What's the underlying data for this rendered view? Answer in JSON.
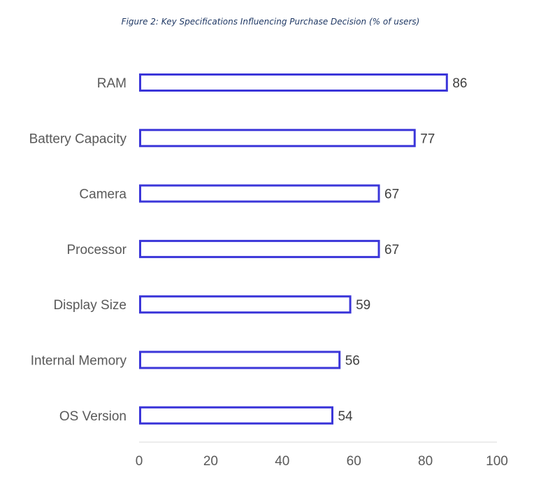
{
  "title": "Figure 2: Key Specifications Influencing Purchase Decision (% of users)",
  "chart_data": {
    "type": "bar",
    "orientation": "horizontal",
    "title": "Figure 2: Key Specifications Influencing Purchase Decision (% of users)",
    "categories": [
      "RAM",
      "Battery Capacity",
      "Camera",
      "Processor",
      "Display Size",
      "Internal Memory",
      "OS Version"
    ],
    "values": [
      86,
      77,
      67,
      67,
      59,
      56,
      54
    ],
    "xlabel": "",
    "ylabel": "",
    "xlim": [
      0,
      100
    ],
    "xticks": [
      "0",
      "20",
      "40",
      "60",
      "80",
      "100"
    ],
    "grid": false,
    "legend": "none",
    "bar_fill": "#ffffff",
    "bar_stroke": "#3b36d9"
  }
}
